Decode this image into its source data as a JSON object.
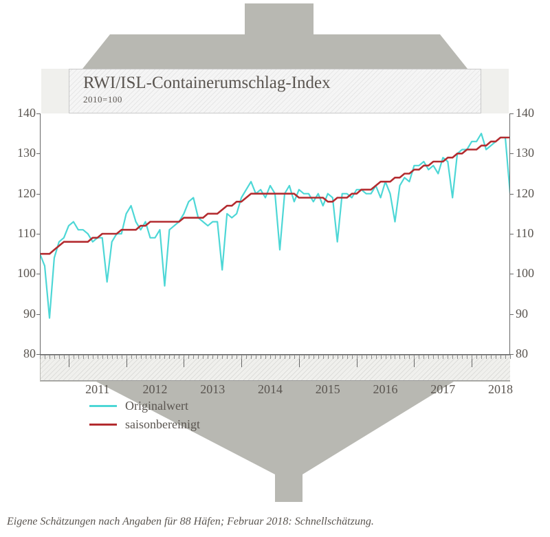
{
  "title": {
    "main": "RWI/ISL-Containerumschlag-Index",
    "sub": "2010=100"
  },
  "chart": {
    "type": "line",
    "ylim": [
      80,
      140
    ],
    "ytick_step": 10,
    "yticks": [
      80,
      90,
      100,
      110,
      120,
      130,
      140
    ],
    "xlim_years": [
      2011,
      2018
    ],
    "xticks_major": [
      2011,
      2012,
      2013,
      2014,
      2015,
      2016,
      2017,
      2018
    ],
    "background_color": "#ffffff",
    "axis_color": "#666666",
    "label_color": "#5a5550",
    "label_fontsize": 18,
    "series": [
      {
        "name": "Originalwert",
        "color": "#4dd7d6",
        "width": 2.2,
        "values": [
          105,
          102,
          89,
          104,
          108,
          109,
          112,
          113,
          111,
          111,
          110,
          108,
          109,
          109,
          98,
          108,
          110,
          110,
          115,
          117,
          113,
          111,
          113,
          109,
          109,
          111,
          97,
          111,
          112,
          113,
          115,
          118,
          119,
          114,
          113,
          112,
          113,
          113,
          101,
          115,
          114,
          115,
          119,
          121,
          123,
          120,
          121,
          119,
          122,
          120,
          106,
          120,
          122,
          118,
          121,
          120,
          120,
          118,
          120,
          117,
          120,
          119,
          108,
          120,
          120,
          119,
          121,
          121,
          120,
          120,
          122,
          119,
          123,
          120,
          113,
          122,
          124,
          123,
          127,
          127,
          128,
          126,
          127,
          125,
          129,
          128,
          119,
          130,
          131,
          131,
          133,
          133,
          135,
          131,
          132,
          133,
          134,
          134,
          120
        ]
      },
      {
        "name": "saisonbereinigt",
        "color": "#b32b2f",
        "width": 2.6,
        "values": [
          105,
          105,
          105,
          106,
          107,
          108,
          108,
          108,
          108,
          108,
          108,
          109,
          109,
          110,
          110,
          110,
          110,
          111,
          111,
          111,
          111,
          112,
          112,
          113,
          113,
          113,
          113,
          113,
          113,
          113,
          114,
          114,
          114,
          114,
          114,
          115,
          115,
          115,
          116,
          117,
          117,
          118,
          118,
          119,
          120,
          120,
          120,
          120,
          120,
          120,
          120,
          120,
          120,
          120,
          119,
          119,
          119,
          119,
          119,
          119,
          118,
          118,
          119,
          119,
          119,
          120,
          120,
          121,
          121,
          121,
          122,
          123,
          123,
          123,
          124,
          124,
          125,
          125,
          126,
          126,
          127,
          127,
          128,
          128,
          128,
          129,
          129,
          130,
          130,
          131,
          131,
          131,
          132,
          132,
          133,
          133,
          134,
          134,
          134
        ]
      }
    ]
  },
  "legend": {
    "items": [
      {
        "label": "Originalwert",
        "color": "#4dd7d6"
      },
      {
        "label": "saisonbereinigt",
        "color": "#b32b2f"
      }
    ]
  },
  "footnote": "Eigene Schätzungen nach Angaben für 88 Häfen; Februar 2018: Schnellschätzung.",
  "decor": {
    "ship_fill": "#b8b8b2",
    "hull_hatch_bg": "#f0f0ed"
  }
}
